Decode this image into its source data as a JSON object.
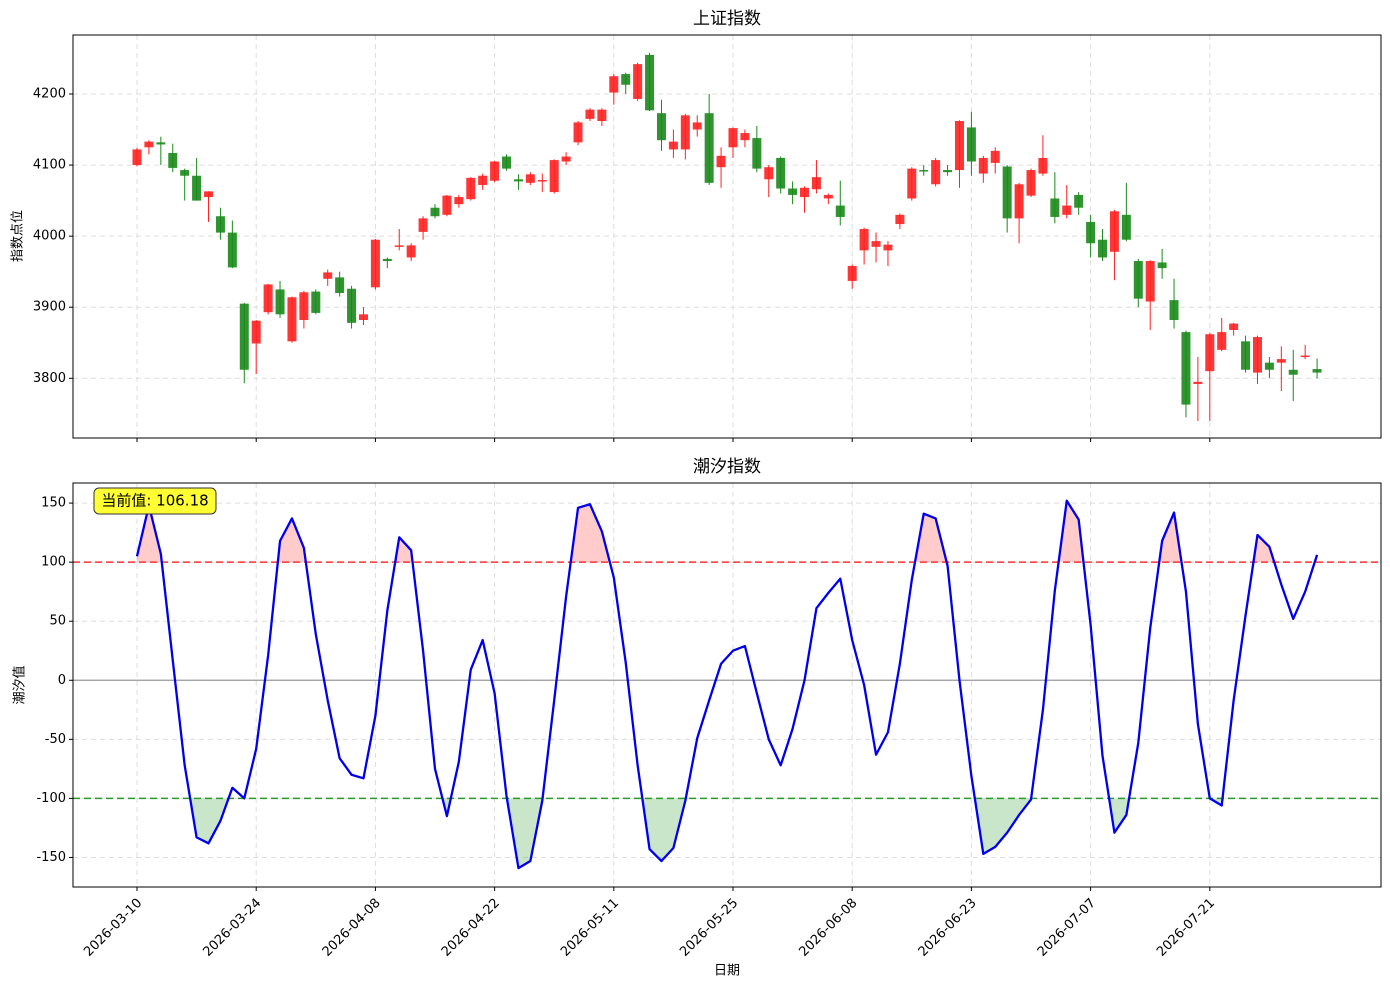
{
  "chart_data": [
    {
      "type": "candlestick",
      "title": "上证指数",
      "ylabel": "指数点位",
      "open": [
        4100,
        4125,
        4132,
        4117,
        4093,
        4085,
        4055,
        4028,
        4005,
        3905,
        3849,
        3893,
        3925,
        3852,
        3882,
        3922,
        3940,
        3942,
        3926,
        3882,
        3928,
        3968,
        3985,
        3970,
        4006,
        4040,
        4030,
        4045,
        4052,
        4072,
        4078,
        4112,
        4080,
        4075,
        4077,
        4062,
        4105,
        4132,
        4165,
        4162,
        4202,
        4228,
        4193,
        4255,
        4173,
        4122,
        4122,
        4150,
        4173,
        4097,
        4125,
        4135,
        4138,
        4080,
        4110,
        4067,
        4055,
        4066,
        4053,
        4043,
        3937,
        3980,
        3985,
        3980,
        4017,
        4053,
        4093,
        4073,
        4093,
        4093,
        4153,
        4088,
        4103,
        4098,
        4025,
        4057,
        4088,
        4053,
        4030,
        4058,
        4020,
        3995,
        3978,
        4030,
        3965,
        3908,
        3963,
        3910,
        3865,
        3792,
        3810,
        3840,
        3868,
        3852,
        3808,
        3822,
        3822,
        3812,
        3831,
        3813
      ],
      "high": [
        4124,
        4135,
        4140,
        4130,
        4095,
        4110,
        4063,
        4040,
        4022,
        3906,
        3882,
        3933,
        3937,
        3915,
        3923,
        3925,
        3953,
        3950,
        3930,
        3900,
        3996,
        3970,
        4010,
        3990,
        4028,
        4045,
        4058,
        4058,
        4083,
        4088,
        4106,
        4115,
        4087,
        4090,
        4088,
        4108,
        4118,
        4162,
        4180,
        4180,
        4228,
        4230,
        4244,
        4258,
        4192,
        4150,
        4172,
        4170,
        4200,
        4125,
        4153,
        4150,
        4155,
        4100,
        4112,
        4077,
        4070,
        4107,
        4060,
        4078,
        3960,
        4012,
        4005,
        3993,
        4032,
        4097,
        4100,
        4110,
        4100,
        4163,
        4175,
        4113,
        4125,
        4100,
        4075,
        4095,
        4142,
        4090,
        4072,
        4062,
        4030,
        4010,
        4037,
        4075,
        3968,
        3966,
        3982,
        3940,
        3867,
        3830,
        3864,
        3885,
        3878,
        3860,
        3860,
        3830,
        3845,
        3840,
        3847,
        3828
      ],
      "low": [
        4098,
        4115,
        4100,
        4090,
        4050,
        4050,
        4020,
        3995,
        3955,
        3793,
        3806,
        3890,
        3885,
        3850,
        3870,
        3890,
        3930,
        3915,
        3870,
        3875,
        3925,
        3955,
        3980,
        3965,
        3995,
        4025,
        4028,
        4040,
        4050,
        4065,
        4076,
        4092,
        4065,
        4072,
        4062,
        4060,
        4100,
        4128,
        4162,
        4155,
        4185,
        4200,
        4190,
        4176,
        4120,
        4110,
        4108,
        4140,
        4072,
        4068,
        4110,
        4125,
        4090,
        4055,
        4060,
        4045,
        4033,
        4060,
        4045,
        4015,
        3926,
        3960,
        3963,
        3958,
        4010,
        4050,
        4085,
        4070,
        4085,
        4068,
        4085,
        4075,
        4088,
        4005,
        3990,
        4055,
        4085,
        4018,
        4025,
        4030,
        3970,
        3965,
        3938,
        3993,
        3900,
        3868,
        3940,
        3870,
        3745,
        3740,
        3740,
        3838,
        3860,
        3808,
        3792,
        3800,
        3782,
        3768,
        3827,
        3800
      ],
      "close": [
        4122,
        4133,
        4129,
        4096,
        4085,
        4050,
        4063,
        4005,
        3956,
        3812,
        3881,
        3932,
        3890,
        3914,
        3921,
        3892,
        3949,
        3920,
        3878,
        3890,
        3995,
        3965,
        3987,
        3987,
        4025,
        4028,
        4057,
        4055,
        4082,
        4085,
        4105,
        4095,
        4077,
        4087,
        4079,
        4107,
        4112,
        4160,
        4178,
        4178,
        4225,
        4213,
        4242,
        4177,
        4135,
        4133,
        4170,
        4160,
        4075,
        4113,
        4152,
        4145,
        4095,
        4097,
        4067,
        4058,
        4068,
        4083,
        4058,
        4027,
        3958,
        4010,
        3993,
        3988,
        4030,
        4095,
        4091,
        4107,
        4090,
        4162,
        4105,
        4110,
        4120,
        4025,
        4073,
        4093,
        4110,
        4027,
        4043,
        4040,
        3990,
        3970,
        4035,
        3995,
        3912,
        3965,
        3955,
        3882,
        3763,
        3795,
        3862,
        3865,
        3877,
        3812,
        3858,
        3812,
        3827,
        3805,
        3832,
        3808
      ],
      "up_color": "#ff2020",
      "down_color": "#1a8a1a",
      "ylim": [
        3716,
        4283
      ],
      "yticks": [
        3800,
        3900,
        4000,
        4100,
        4200
      ],
      "grid": true
    },
    {
      "type": "line",
      "title": "潮汐指数",
      "xlabel": "日期",
      "ylabel": "潮汐值",
      "categories": [
        "2026-03-10",
        null,
        null,
        null,
        null,
        null,
        null,
        null,
        null,
        null,
        "2026-03-24",
        null,
        null,
        null,
        null,
        null,
        null,
        null,
        null,
        null,
        "2026-04-08",
        null,
        null,
        null,
        null,
        null,
        null,
        null,
        null,
        null,
        "2026-04-22",
        null,
        null,
        null,
        null,
        null,
        null,
        null,
        null,
        null,
        "2026-05-11",
        null,
        null,
        null,
        null,
        null,
        null,
        null,
        null,
        null,
        "2026-05-25",
        null,
        null,
        null,
        null,
        null,
        null,
        null,
        null,
        null,
        "2026-06-08",
        null,
        null,
        null,
        null,
        null,
        null,
        null,
        null,
        null,
        "2026-06-23",
        null,
        null,
        null,
        null,
        null,
        null,
        null,
        null,
        null,
        "2026-07-07",
        null,
        null,
        null,
        null,
        null,
        null,
        null,
        null,
        null,
        "2026-07-21",
        null,
        null,
        null,
        null,
        null,
        null,
        null,
        null,
        null
      ],
      "values": [
        105,
        148,
        107,
        17,
        -72,
        -133,
        -138,
        -119,
        -91,
        -100,
        -58,
        21,
        118,
        137,
        112,
        39,
        -17,
        -66,
        -80,
        -83,
        -30,
        59,
        121,
        110,
        25,
        -75,
        -115,
        -69,
        9,
        34,
        -11,
        -98,
        -159,
        -153,
        -102,
        -17,
        71,
        146,
        149,
        126,
        87,
        15,
        -72,
        -143,
        -153,
        -142,
        -102,
        -49,
        -17,
        14,
        25,
        29,
        -11,
        -50,
        -72,
        -41,
        0,
        61,
        74,
        86,
        34,
        -4,
        -63,
        -44,
        14,
        85,
        141,
        137,
        97,
        0,
        -81,
        -147,
        -141,
        -129,
        -114,
        -101,
        -25,
        76,
        152,
        136,
        47,
        -64,
        -129,
        -114,
        -53,
        44,
        118,
        142,
        75,
        -37,
        -100,
        -106,
        -17,
        55,
        123,
        113,
        81,
        52,
        75,
        106.18
      ],
      "color": "#0000ee",
      "upper_threshold": 100,
      "upper_color": "#ff3030",
      "lower_threshold": -100,
      "lower_color": "#2a9a2a",
      "zero_line": true,
      "annotation": "当前值: 106.18",
      "ylim": [
        -175,
        167
      ],
      "yticks": [
        -150,
        -100,
        -50,
        0,
        50,
        100,
        150
      ],
      "grid": true
    }
  ]
}
